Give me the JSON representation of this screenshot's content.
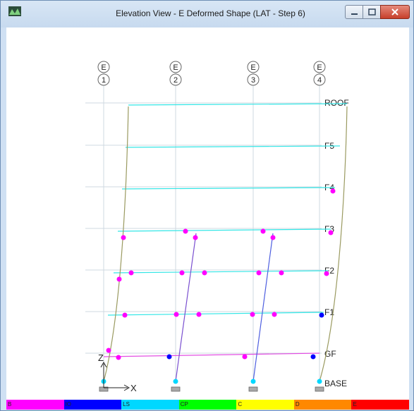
{
  "window": {
    "title": "Elevation View - E  Deformed Shape (LAT - Step 6)"
  },
  "grid_bubbles": [
    {
      "line": "E",
      "number": "1"
    },
    {
      "line": "E",
      "number": "2"
    },
    {
      "line": "E",
      "number": "3"
    },
    {
      "line": "E",
      "number": "4"
    }
  ],
  "story_labels": [
    "ROOF",
    "F5",
    "F4",
    "F3",
    "F2",
    "F1",
    "GF",
    "BASE"
  ],
  "axis": {
    "z_label": "Z",
    "x_label": "X"
  },
  "legend": [
    {
      "label": "B",
      "color": "#ff00ff"
    },
    {
      "label": "IO",
      "color": "#0000ff"
    },
    {
      "label": "LS",
      "color": "#00d8ff"
    },
    {
      "label": "CP",
      "color": "#00ff00"
    },
    {
      "label": "C",
      "color": "#ffff00"
    },
    {
      "label": "D",
      "color": "#ff8800"
    },
    {
      "label": "E",
      "color": "#ff0000"
    }
  ],
  "colors": {
    "beam": "#33e6e6",
    "column_outer": "#9a9a60",
    "grid_line": "#cfd8e0"
  }
}
